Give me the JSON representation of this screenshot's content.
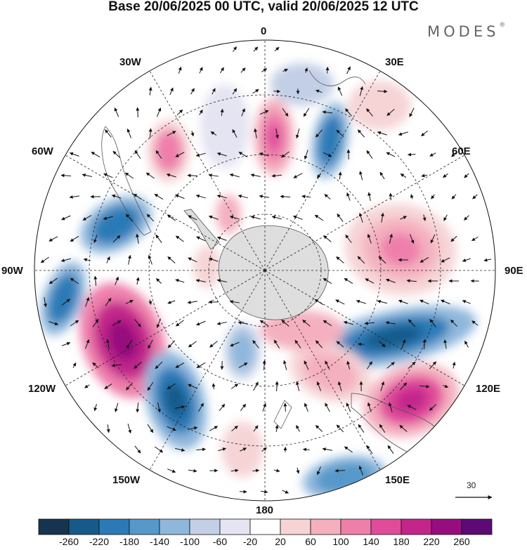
{
  "header": {
    "title": "Base 20/06/2025 00 UTC, valid 20/06/2025 12 UTC"
  },
  "brand": {
    "name": "MODES",
    "mark": "®"
  },
  "map": {
    "projection": "south-polar-stereographic",
    "longitude_labels": {
      "0": "0",
      "30E": "30E",
      "60E": "60E",
      "90E": "90E",
      "120E": "120E",
      "150E": "150E",
      "180": "180",
      "150W": "150W",
      "120W": "120W",
      "90W": "90W",
      "60W": "60W",
      "30W": "30W"
    },
    "vector_reference": {
      "value": "30"
    }
  },
  "colorbar": {
    "colors": [
      "#16344f",
      "#155a8a",
      "#2b7ab7",
      "#5598c9",
      "#8fb7dc",
      "#c2cfe6",
      "#e4e4f2",
      "#ffffff",
      "#f6d4d6",
      "#f4b0bf",
      "#ee7fab",
      "#e04b9a",
      "#c3258b",
      "#970d7e",
      "#5c0a74"
    ],
    "tick_labels": [
      "-260",
      "-220",
      "-180",
      "-140",
      "-100",
      "-60",
      "-20",
      "20",
      "60",
      "100",
      "140",
      "180",
      "220",
      "260"
    ]
  }
}
